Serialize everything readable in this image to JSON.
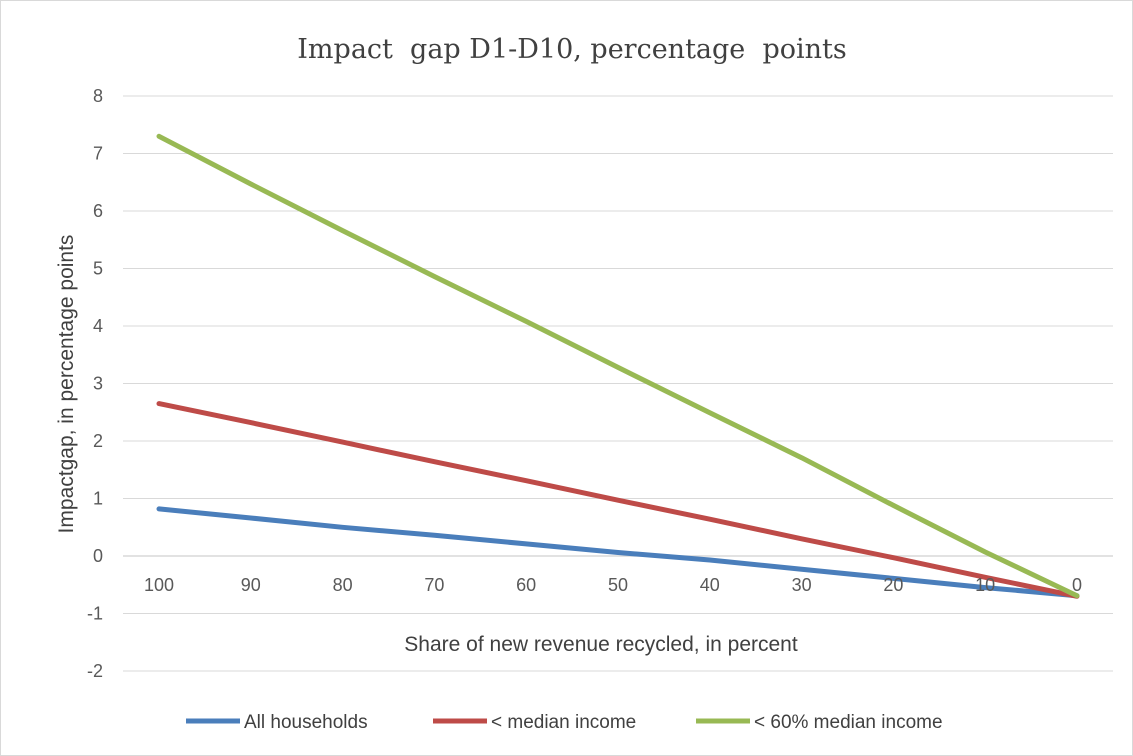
{
  "chart_data": {
    "type": "line",
    "title": "Impact  gap D1-D10, percentage  points",
    "xlabel": "Share of new revenue recycled, in percent",
    "ylabel": "Impactgap, in percentage points",
    "x": [
      100,
      90,
      80,
      70,
      60,
      50,
      40,
      30,
      20,
      10,
      0
    ],
    "x_tick_labels": [
      "100",
      "90",
      "80",
      "70",
      "60",
      "50",
      "40",
      "30",
      "20",
      "10",
      "0"
    ],
    "y_ticks": [
      8,
      7,
      6,
      5,
      4,
      3,
      2,
      1,
      0,
      -1,
      -2
    ],
    "y_tick_labels": [
      "8",
      "7",
      "6",
      "5",
      "4",
      "3",
      "2",
      "1",
      "0",
      "-1",
      "-2"
    ],
    "ylim": [
      -2,
      8
    ],
    "x_axis_reversed": true,
    "x_axis_crosses_at": 0,
    "grid": "horizontal",
    "legend_position": "bottom",
    "series": [
      {
        "name": "All households",
        "color": "#4a7ebb",
        "values": [
          0.82,
          0.66,
          0.5,
          0.36,
          0.21,
          0.06,
          -0.07,
          -0.23,
          -0.39,
          -0.55,
          -0.69
        ]
      },
      {
        "name": "< median income",
        "color": "#be4b48",
        "values": [
          2.65,
          2.32,
          1.98,
          1.64,
          1.31,
          0.97,
          0.64,
          0.3,
          -0.03,
          -0.37,
          -0.7
        ]
      },
      {
        "name": "< 60% median income",
        "color": "#98b954",
        "values": [
          7.3,
          6.47,
          5.66,
          4.86,
          4.08,
          3.28,
          2.49,
          1.71,
          0.88,
          0.07,
          -0.69
        ]
      }
    ]
  }
}
